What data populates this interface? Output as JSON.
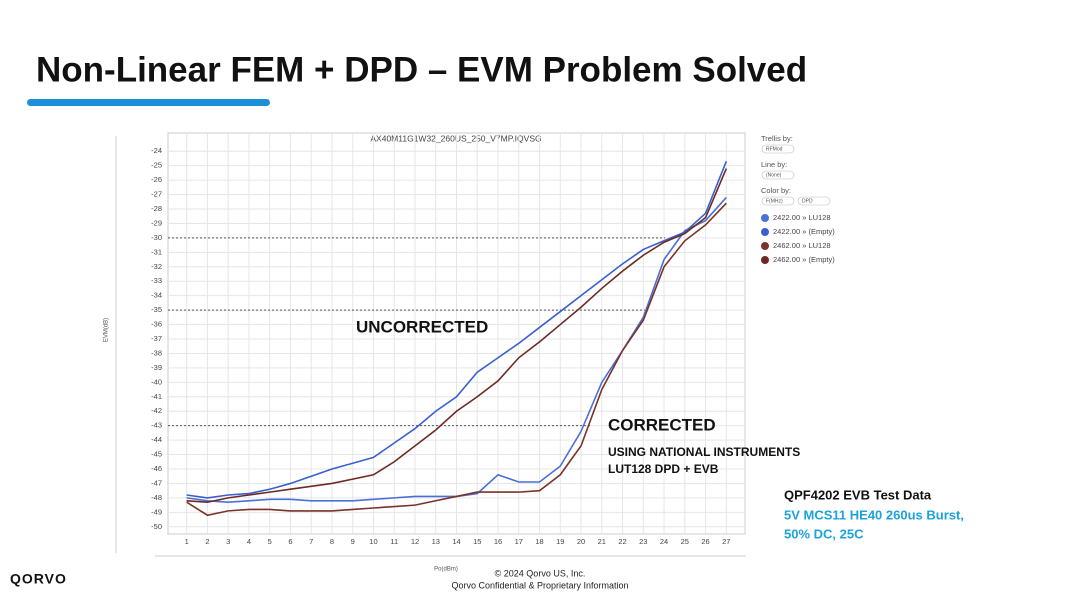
{
  "slide_title": "Non-Linear FEM + DPD – EVM Problem Solved",
  "chart_data": {
    "type": "line",
    "title": "AX40M11G1W32_260US_250_V7MP.IQVSG",
    "x_label": "Po(dBm)",
    "y_label": "EVM(dB)",
    "x": [
      1,
      2,
      3,
      4,
      5,
      6,
      7,
      8,
      9,
      10,
      11,
      12,
      13,
      14,
      15,
      16,
      17,
      18,
      19,
      20,
      21,
      22,
      23,
      24,
      25,
      26,
      27
    ],
    "xlim": [
      0.1,
      27.9
    ],
    "xticks": [
      1,
      2,
      3,
      4,
      5,
      6,
      7,
      8,
      9,
      10,
      11,
      12,
      13,
      14,
      15,
      16,
      17,
      18,
      19,
      20,
      21,
      22,
      23,
      24,
      25,
      26,
      27
    ],
    "ylim": [
      -50.5,
      -23.5
    ],
    "yticks": [
      -24,
      -25,
      -26,
      -27,
      -28,
      -29,
      -30,
      -31,
      -32,
      -33,
      -34,
      -35,
      -36,
      -37,
      -38,
      -39,
      -40,
      -41,
      -42,
      -43,
      -44,
      -45,
      -46,
      -47,
      -48,
      -49,
      -50
    ],
    "grid": true,
    "reference_lines": [
      -30,
      -35,
      -43
    ],
    "series": [
      {
        "name": "2422.00 » LU128",
        "color": "#4a6fd8",
        "values": [
          -48.0,
          -48.2,
          -48.3,
          -48.2,
          -48.1,
          -48.1,
          -48.2,
          -48.2,
          -48.2,
          -48.1,
          -48.0,
          -47.9,
          -47.9,
          -47.9,
          -47.7,
          -46.4,
          -46.9,
          -46.9,
          -45.8,
          -43.4,
          -40.0,
          -37.8,
          -35.5,
          -31.5,
          -29.5,
          -28.8,
          -27.2
        ]
      },
      {
        "name": "2422.00 » (Empty)",
        "color": "#3a5fd0",
        "values": [
          -47.8,
          -48.0,
          -47.8,
          -47.7,
          -47.4,
          -47.0,
          -46.5,
          -46.0,
          -45.6,
          -45.2,
          -44.2,
          -43.2,
          -42.0,
          -41.0,
          -39.3,
          -38.3,
          -37.3,
          -36.2,
          -35.1,
          -34.0,
          -32.9,
          -31.8,
          -30.8,
          -30.2,
          -29.6,
          -28.3,
          -24.7
        ]
      },
      {
        "name": "2462.00 » LU128",
        "color": "#7a3328",
        "values": [
          -48.3,
          -49.2,
          -48.9,
          -48.8,
          -48.8,
          -48.9,
          -48.9,
          -48.9,
          -48.8,
          -48.7,
          -48.6,
          -48.5,
          -48.2,
          -47.9,
          -47.6,
          -47.6,
          -47.6,
          -47.5,
          -46.4,
          -44.4,
          -40.5,
          -37.8,
          -35.7,
          -32.0,
          -30.2,
          -29.1,
          -27.6
        ]
      },
      {
        "name": "2462.00 » (Empty)",
        "color": "#6e2a22",
        "values": [
          -48.2,
          -48.3,
          -48.0,
          -47.8,
          -47.6,
          -47.4,
          -47.2,
          -47.0,
          -46.7,
          -46.4,
          -45.5,
          -44.4,
          -43.3,
          -42.0,
          -41.0,
          -39.9,
          -38.3,
          -37.2,
          -36.0,
          -34.8,
          -33.5,
          -32.3,
          -31.2,
          -30.3,
          -29.7,
          -28.6,
          -25.2
        ]
      }
    ],
    "annotations": [
      "UNCORRECTED",
      "CORRECTED",
      "USING NATIONAL INSTRUMENTS",
      "LUT128 DPD + EVB"
    ],
    "controls": [
      "Trellis by:",
      "RFMod",
      "Line by:",
      "(None)",
      "Color by:",
      "F(MHz)",
      "DPD"
    ]
  },
  "note": {
    "heading": "QPF4202 EVB Test Data",
    "lines": [
      "5V MCS11 HE40 260us Burst,",
      "50% DC, 25C"
    ]
  },
  "footer": {
    "logo": "QORVO",
    "lines": [
      "© 2024 Qorvo US, Inc.",
      "Qorvo Confidential & Proprietary Information"
    ]
  }
}
